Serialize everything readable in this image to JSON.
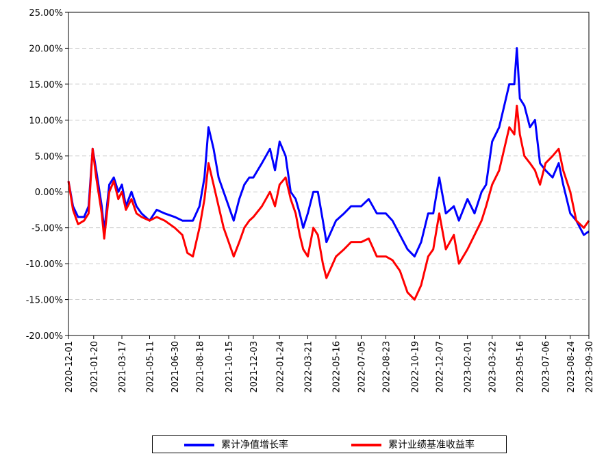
{
  "chart_data": {
    "type": "line",
    "x": [
      "2020-12-01",
      "2020-12-10",
      "2020-12-20",
      "2021-01-01",
      "2021-01-10",
      "2021-01-18",
      "2021-01-25",
      "2021-02-05",
      "2021-02-10",
      "2021-02-20",
      "2021-03-01",
      "2021-03-10",
      "2021-03-17",
      "2021-03-25",
      "2021-04-05",
      "2021-04-15",
      "2021-04-25",
      "2021-05-11",
      "2021-05-25",
      "2021-06-10",
      "2021-06-30",
      "2021-07-15",
      "2021-07-25",
      "2021-08-05",
      "2021-08-18",
      "2021-08-28",
      "2021-09-05",
      "2021-09-15",
      "2021-09-25",
      "2021-10-05",
      "2021-10-15",
      "2021-10-25",
      "2021-11-05",
      "2021-11-15",
      "2021-11-25",
      "2021-12-03",
      "2021-12-20",
      "2022-01-05",
      "2022-01-15",
      "2022-01-24",
      "2022-02-05",
      "2022-02-15",
      "2022-02-25",
      "2022-03-05",
      "2022-03-12",
      "2022-03-21",
      "2022-04-01",
      "2022-04-10",
      "2022-04-20",
      "2022-04-27",
      "2022-05-16",
      "2022-06-01",
      "2022-06-15",
      "2022-07-05",
      "2022-07-20",
      "2022-08-05",
      "2022-08-23",
      "2022-09-05",
      "2022-09-20",
      "2022-10-05",
      "2022-10-19",
      "2022-11-01",
      "2022-11-15",
      "2022-11-25",
      "2022-12-07",
      "2022-12-20",
      "2023-01-05",
      "2023-01-15",
      "2023-02-01",
      "2023-02-15",
      "2023-03-01",
      "2023-03-10",
      "2023-03-22",
      "2023-04-05",
      "2023-04-15",
      "2023-04-25",
      "2023-05-05",
      "2023-05-10",
      "2023-05-16",
      "2023-05-25",
      "2023-06-05",
      "2023-06-15",
      "2023-06-25",
      "2023-07-06",
      "2023-07-20",
      "2023-08-01",
      "2023-08-10",
      "2023-08-24",
      "2023-09-05",
      "2023-09-20",
      "2023-09-30"
    ],
    "series": [
      {
        "name": "累计净值增长率",
        "color": "#0000ff",
        "values": [
          1.5,
          -2,
          -3.5,
          -3.5,
          -2,
          6,
          3,
          -2,
          -5.5,
          1,
          2,
          0,
          1,
          -2,
          0,
          -2,
          -3,
          -4,
          -2.5,
          -3,
          -3.5,
          -4,
          -4,
          -4,
          -2,
          2,
          9,
          6,
          2,
          0,
          -2,
          -4,
          -1,
          1,
          2,
          2,
          4,
          6,
          3,
          7,
          5,
          0,
          -1,
          -3,
          -5,
          -3,
          0,
          0,
          -4,
          -7,
          -4,
          -3,
          -2,
          -2,
          -1,
          -3,
          -3,
          -4,
          -6,
          -8,
          -9,
          -7,
          -3,
          -3,
          2,
          -3,
          -2,
          -4,
          -1,
          -3,
          0,
          1,
          7,
          9,
          12,
          15,
          15,
          20,
          13,
          12,
          9,
          10,
          4,
          3,
          2,
          4,
          1,
          -3,
          -4,
          -6,
          -5.5
        ]
      },
      {
        "name": "累计业绩基准收益率",
        "color": "#ff0000",
        "values": [
          1.5,
          -2.5,
          -4.5,
          -4,
          -3,
          6,
          2,
          -3,
          -6.5,
          0,
          1.5,
          -1,
          0,
          -2.5,
          -1,
          -3,
          -3.5,
          -4,
          -3.5,
          -4,
          -5,
          -6,
          -8.5,
          -9,
          -5,
          -1,
          4,
          1,
          -2,
          -5,
          -7,
          -9,
          -7,
          -5,
          -4,
          -3.5,
          -2,
          0,
          -2,
          1,
          2,
          -1,
          -3,
          -6,
          -8,
          -9,
          -5,
          -6,
          -10,
          -12,
          -9,
          -8,
          -7,
          -7,
          -6.5,
          -9,
          -9,
          -9.5,
          -11,
          -14,
          -15,
          -13,
          -9,
          -8,
          -3,
          -8,
          -6,
          -10,
          -8,
          -6,
          -4,
          -2,
          1,
          3,
          6,
          9,
          8,
          12,
          8,
          5,
          4,
          3,
          1,
          4,
          5,
          6,
          3,
          0,
          -4,
          -5,
          -4
        ]
      }
    ],
    "xlim": [
      "2020-12-01",
      "2023-09-30"
    ],
    "xticks": [
      "2020-12-01",
      "2021-01-20",
      "2021-03-17",
      "2021-05-11",
      "2021-06-30",
      "2021-08-18",
      "2021-10-15",
      "2021-12-03",
      "2022-01-24",
      "2022-03-21",
      "2022-05-16",
      "2022-07-05",
      "2022-08-23",
      "2022-10-19",
      "2022-12-07",
      "2023-02-01",
      "2023-03-22",
      "2023-05-16",
      "2023-07-06",
      "2023-08-24",
      "2023-09-30"
    ],
    "ylim": [
      -20,
      25
    ],
    "yticks": [
      {
        "value": -20,
        "label": "-20.00%"
      },
      {
        "value": -15,
        "label": "-15.00%"
      },
      {
        "value": -10,
        "label": "-10.00%"
      },
      {
        "value": -5,
        "label": "-5.00%"
      },
      {
        "value": 0,
        "label": "0.00%"
      },
      {
        "value": 5,
        "label": "5.00%"
      },
      {
        "value": 10,
        "label": "10.00%"
      },
      {
        "value": 15,
        "label": "15.00%"
      },
      {
        "value": 20,
        "label": "20.00%"
      },
      {
        "value": 25,
        "label": "25.00%"
      }
    ],
    "grid": true
  }
}
